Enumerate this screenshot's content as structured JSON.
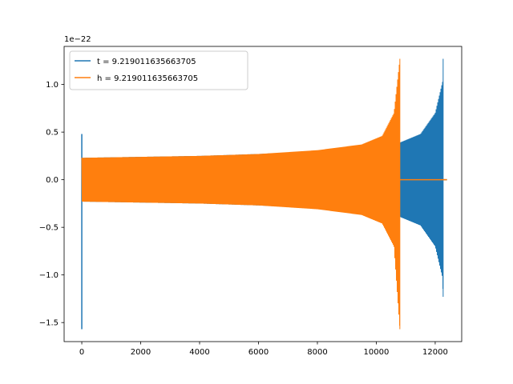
{
  "chart_data": {
    "type": "line",
    "title": "",
    "xlabel": "",
    "ylabel": "",
    "y_scale_label": "1e−22",
    "xlim": [
      -600,
      12900
    ],
    "ylim": [
      -1.7,
      1.4
    ],
    "x_ticks": [
      {
        "value": 0,
        "label": "0"
      },
      {
        "value": 2000,
        "label": "2000"
      },
      {
        "value": 4000,
        "label": "4000"
      },
      {
        "value": 6000,
        "label": "6000"
      },
      {
        "value": 8000,
        "label": "8000"
      },
      {
        "value": 10000,
        "label": "10000"
      },
      {
        "value": 12000,
        "label": "12000"
      }
    ],
    "y_ticks": [
      {
        "value": -1.5,
        "label": "−1.5"
      },
      {
        "value": -1.0,
        "label": "−1.0"
      },
      {
        "value": -0.5,
        "label": "−0.5"
      },
      {
        "value": 0.0,
        "label": "0.0"
      },
      {
        "value": 0.5,
        "label": "0.5"
      },
      {
        "value": 1.0,
        "label": "1.0"
      }
    ],
    "grid": false,
    "legend_position": "top-left",
    "series": [
      {
        "name": "t = 9.219011635663705",
        "color": "#1f77b4",
        "envelope": {
          "start_spike": {
            "x": 0,
            "min": -1.57,
            "max": 0.48
          },
          "x": [
            0,
            2000,
            4000,
            6000,
            8000,
            10000,
            10800,
            11500,
            12000,
            12250,
            12270
          ],
          "upper": [
            0.23,
            0.24,
            0.25,
            0.27,
            0.3,
            0.36,
            0.39,
            0.48,
            0.7,
            1.03,
            1.27
          ],
          "lower": [
            -0.23,
            -0.24,
            -0.25,
            -0.27,
            -0.3,
            -0.36,
            -0.39,
            -0.48,
            -0.7,
            -1.03,
            -1.23
          ],
          "tail": {
            "x": [
              12270,
              12400
            ],
            "y": 0.0
          }
        }
      },
      {
        "name": "h = 9.219011635663705",
        "color": "#ff7f0e",
        "envelope": {
          "x": [
            0,
            2000,
            4000,
            6000,
            8000,
            9500,
            10200,
            10600,
            10800
          ],
          "upper": [
            0.23,
            0.24,
            0.25,
            0.27,
            0.31,
            0.37,
            0.46,
            0.7,
            1.27
          ],
          "lower": [
            -0.23,
            -0.24,
            -0.25,
            -0.27,
            -0.31,
            -0.37,
            -0.46,
            -0.7,
            -1.57
          ],
          "tail": {
            "x": [
              10800,
              12400
            ],
            "y": 0.0
          }
        }
      }
    ]
  }
}
